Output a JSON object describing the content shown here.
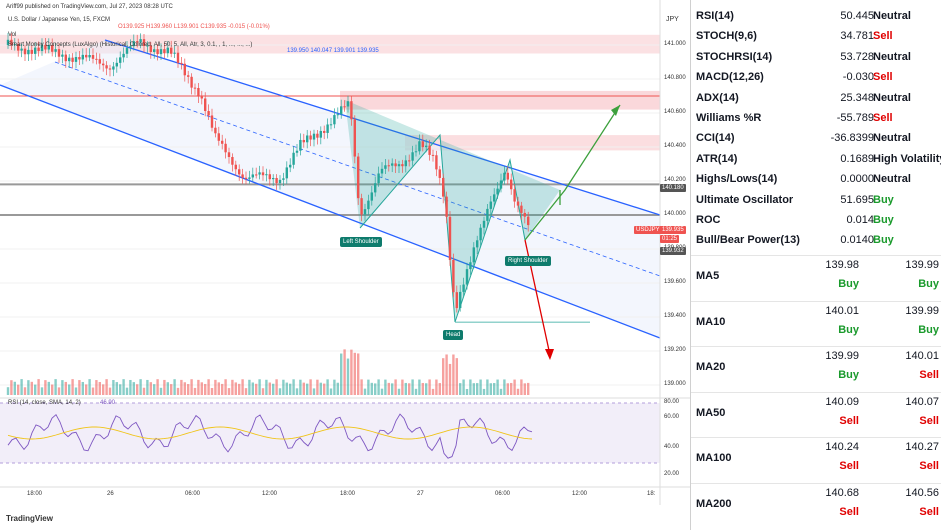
{
  "header": {
    "publisher": "Ariff99 published on TradingView.com, Jul 27, 2023 08:28 UTC",
    "instrument": "U.S. Dollar / Japanese Yen, 15, FXCM",
    "ohlc": "O139.925 H139.960 L139.901 C139.935 -0.015 (-0.01%)",
    "volume_label": "Vol",
    "smc_label": "Smart Money Concepts (LuxAlgo) (Historical, Colored, All, 50, 5, All, Atr, 3, 0.1, , 1, ..., ..., ...)",
    "smc_values": "139.950  140.047  139.901  139.935",
    "rsi_label": "RSI (14, close, SMA, 14, 2)",
    "rsi_value": "46.90",
    "currency": "JPY",
    "footer": "TradingView"
  },
  "price_labels": [
    "141.000",
    "140.800",
    "140.600",
    "140.400",
    "140.200",
    "140.000",
    "139.800",
    "139.600",
    "139.400",
    "139.200",
    "139.000"
  ],
  "price_tags": {
    "level1": "140.180",
    "symbol": "USDJPY",
    "current": "139.935",
    "countdown": "01:25",
    "level2": "139.932"
  },
  "rsi_labels": [
    "80.00",
    "60.00",
    "40.00",
    "20.00"
  ],
  "time_labels": [
    "18:00",
    "26",
    "06:00",
    "12:00",
    "18:00",
    "27",
    "06:00",
    "12:00",
    "18:"
  ],
  "pattern_labels": {
    "left": "Left Shoulder",
    "head": "Head",
    "right": "Right Shoulder"
  },
  "chart_data": {
    "type": "line",
    "title": "U.S. Dollar / Japanese Yen, 15, FXCM",
    "ylim": [
      138.9,
      141.1
    ],
    "x": [
      "25 18:00",
      "26 00:00",
      "26 06:00",
      "26 12:00",
      "26 18:00",
      "27 00:00",
      "27 06:00",
      "27 08:28"
    ],
    "series": [
      {
        "name": "USDJPY",
        "values": [
          140.9,
          141.02,
          140.87,
          140.25,
          140.55,
          140.4,
          139.43,
          139.93
        ]
      }
    ],
    "levels": [
      140.18,
      140.0,
      139.935,
      139.932
    ],
    "pattern": {
      "left_shoulder": 139.98,
      "head": 139.4,
      "right_shoulder": 139.94
    }
  },
  "colors": {
    "up": "#26a69a",
    "down": "#ef5350",
    "channel": "#2962ff",
    "buy": "#1a9a2c",
    "sell": "#e00000",
    "tag_blue": "#2962ff",
    "tag_red": "#ef5350",
    "rsi": "#7e57c2"
  },
  "indicators": [
    {
      "name": "RSI(14)",
      "value": "50.445",
      "signal": "Neutral",
      "cls": "c-neu"
    },
    {
      "name": "STOCH(9,6)",
      "value": "34.781",
      "signal": "Sell",
      "cls": "c-sell"
    },
    {
      "name": "STOCHRSI(14)",
      "value": "53.728",
      "signal": "Neutral",
      "cls": "c-neu"
    },
    {
      "name": "MACD(12,26)",
      "value": "-0.030",
      "signal": "Sell",
      "cls": "c-sell"
    },
    {
      "name": "ADX(14)",
      "value": "25.348",
      "signal": "Neutral",
      "cls": "c-neu"
    },
    {
      "name": "Williams %R",
      "value": "-55.789",
      "signal": "Sell",
      "cls": "c-sell"
    },
    {
      "name": "CCI(14)",
      "value": "-36.8399",
      "signal": "Neutral",
      "cls": "c-neu"
    },
    {
      "name": "ATR(14)",
      "value": "0.1689",
      "signal": "High Volatility",
      "cls": "c-neu"
    },
    {
      "name": "Highs/Lows(14)",
      "value": "0.0000",
      "signal": "Neutral",
      "cls": "c-neu"
    },
    {
      "name": "Ultimate Oscillator",
      "value": "51.695",
      "signal": "Buy",
      "cls": "c-buy"
    },
    {
      "name": "ROC",
      "value": "0.014",
      "signal": "Buy",
      "cls": "c-buy"
    },
    {
      "name": "Bull/Bear Power(13)",
      "value": "0.0140",
      "signal": "Buy",
      "cls": "c-buy"
    }
  ],
  "moving_averages": [
    {
      "name": "MA5",
      "v1": "139.98",
      "s1": "Buy",
      "c1": "c-buy",
      "v2": "139.99",
      "s2": "Buy",
      "c2": "c-buy"
    },
    {
      "name": "MA10",
      "v1": "140.01",
      "s1": "Buy",
      "c1": "c-buy",
      "v2": "139.99",
      "s2": "Buy",
      "c2": "c-buy"
    },
    {
      "name": "MA20",
      "v1": "139.99",
      "s1": "Buy",
      "c1": "c-buy",
      "v2": "140.01",
      "s2": "Sell",
      "c2": "c-sell"
    },
    {
      "name": "MA50",
      "v1": "140.09",
      "s1": "Sell",
      "c1": "c-sell",
      "v2": "140.07",
      "s2": "Sell",
      "c2": "c-sell"
    },
    {
      "name": "MA100",
      "v1": "140.24",
      "s1": "Sell",
      "c1": "c-sell",
      "v2": "140.27",
      "s2": "Sell",
      "c2": "c-sell"
    },
    {
      "name": "MA200",
      "v1": "140.68",
      "s1": "Sell",
      "c1": "c-sell",
      "v2": "140.56",
      "s2": "Sell",
      "c2": "c-sell"
    }
  ]
}
